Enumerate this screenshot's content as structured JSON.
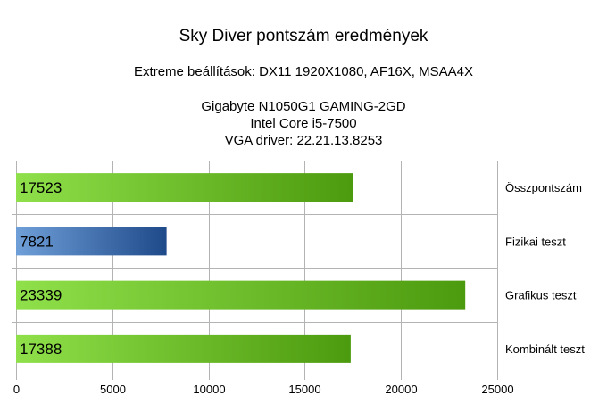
{
  "chart_data": {
    "type": "bar",
    "orientation": "horizontal",
    "title": "Sky Diver pontszám eredmények",
    "subtitle": "Extreme beállítások: DX11 1920X1080, AF16X, MSAA4X",
    "info_lines": [
      "Gigabyte N1050G1 GAMING-2GD",
      "Intel Core i5-7500",
      "VGA driver: 22.21.13.8253"
    ],
    "categories": [
      "Összpontszám",
      "Fizikai teszt",
      "Grafikus teszt",
      "Kombinált teszt"
    ],
    "values": [
      17523,
      7821,
      23339,
      17388
    ],
    "data_labels": [
      "17523",
      "7821",
      "23339",
      "17388"
    ],
    "bar_styles": [
      "green",
      "blue",
      "green",
      "green"
    ],
    "xlim": [
      0,
      25000
    ],
    "xticks": [
      0,
      5000,
      10000,
      15000,
      20000,
      25000
    ],
    "xtick_labels": [
      "0",
      "5000",
      "10000",
      "15000",
      "20000",
      "25000"
    ],
    "category_label_side": "right",
    "grid": true,
    "legend": "none",
    "colors": {
      "green_light": "#8fe04a",
      "green_dark": "#4c9a0e",
      "blue_light": "#6f9fd8",
      "blue_dark": "#1f4a8a",
      "grid": "#b3b3b3"
    }
  }
}
